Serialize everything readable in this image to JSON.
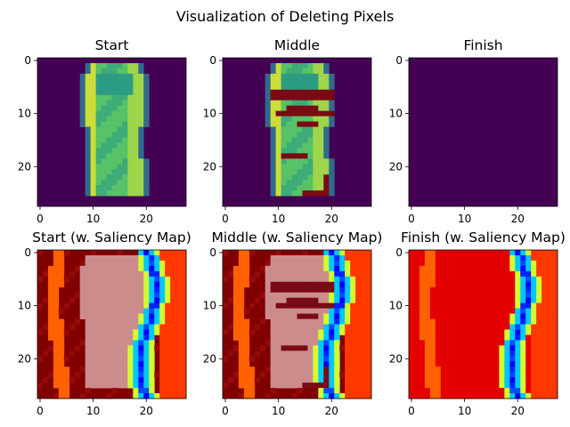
{
  "figure": {
    "title": "Visualization of Deleting Pixels"
  },
  "chart_data": [
    {
      "type": "heatmap",
      "title": "Start",
      "image": "dress, all pixels present",
      "colormap": "viridis",
      "x_ticks": [
        0,
        10,
        20
      ],
      "y_ticks": [
        0,
        10,
        20
      ],
      "xlim": [
        -0.5,
        27.5
      ],
      "ylim": [
        27.5,
        -0.5
      ],
      "grid": false
    },
    {
      "type": "heatmap",
      "title": "Middle",
      "image": "dress, some pixels deleted",
      "colormap": "viridis",
      "x_ticks": [
        0,
        10,
        20
      ],
      "y_ticks": [
        0,
        10,
        20
      ],
      "xlim": [
        -0.5,
        27.5
      ],
      "ylim": [
        27.5,
        -0.5
      ],
      "grid": false
    },
    {
      "type": "heatmap",
      "title": "Finish",
      "image": "all pixels deleted",
      "colormap": "viridis",
      "x_ticks": [
        0,
        10,
        20
      ],
      "y_ticks": [
        0,
        10,
        20
      ],
      "xlim": [
        -0.5,
        27.5
      ],
      "ylim": [
        27.5,
        -0.5
      ],
      "grid": false
    },
    {
      "type": "heatmap",
      "title": "Start (w. Saliency Map)",
      "image": "dress over saliency map",
      "colormap": "jet overlay on red",
      "x_ticks": [
        0,
        10,
        20
      ],
      "y_ticks": [
        0,
        10,
        20
      ],
      "xlim": [
        -0.5,
        27.5
      ],
      "ylim": [
        27.5,
        -0.5
      ],
      "grid": false
    },
    {
      "type": "heatmap",
      "title": "Middle (w. Saliency Map)",
      "image": "partially deleted dress over saliency map",
      "colormap": "jet overlay on red",
      "x_ticks": [
        0,
        10,
        20
      ],
      "y_ticks": [
        0,
        10,
        20
      ],
      "xlim": [
        -0.5,
        27.5
      ],
      "ylim": [
        27.5,
        -0.5
      ],
      "grid": false
    },
    {
      "type": "heatmap",
      "title": "Finish (w. Saliency Map)",
      "image": "saliency map only",
      "colormap": "jet overlay on red",
      "x_ticks": [
        0,
        10,
        20
      ],
      "y_ticks": [
        0,
        10,
        20
      ],
      "xlim": [
        -0.5,
        27.5
      ],
      "ylim": [
        27.5,
        -0.5
      ],
      "grid": false
    }
  ],
  "colors": {
    "viridis_background": "#440154",
    "saliency_background": "#800000",
    "deleted_pixel": "#7a0a14"
  }
}
